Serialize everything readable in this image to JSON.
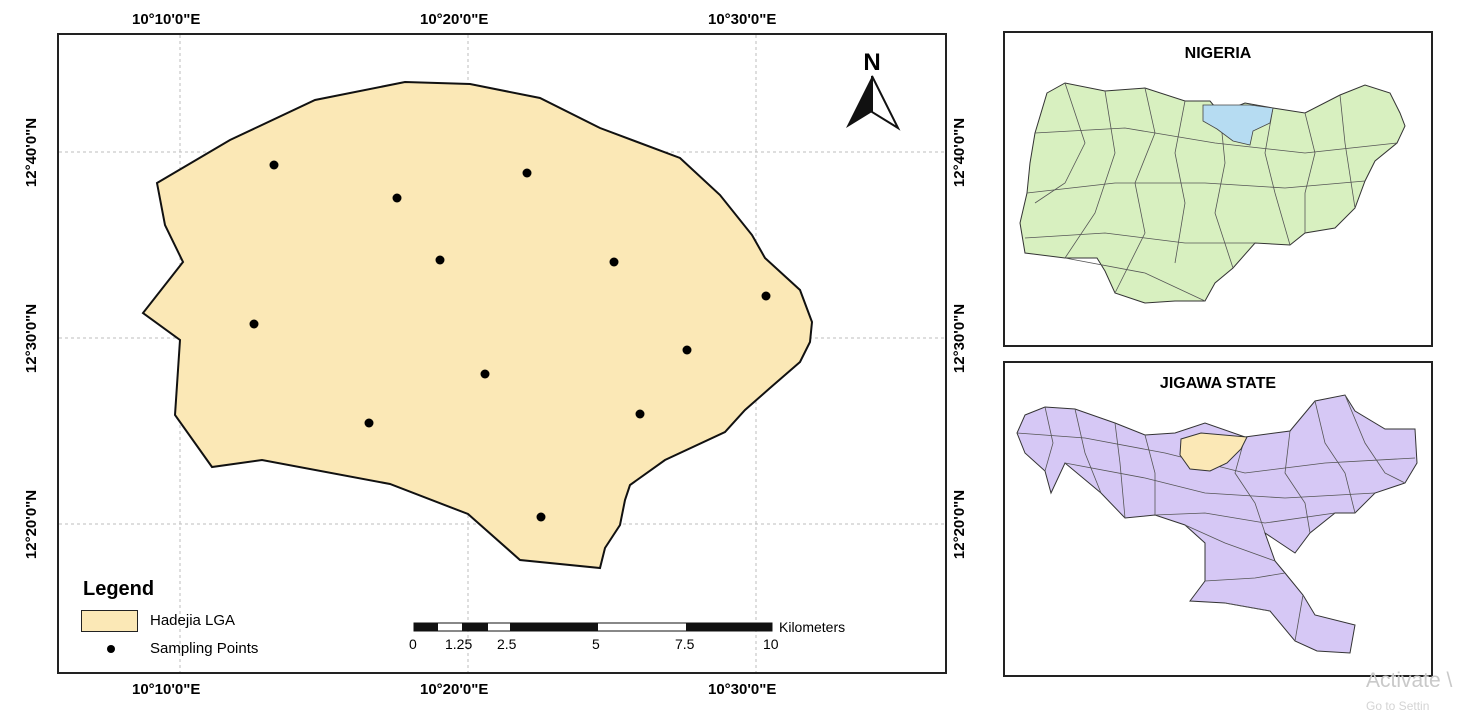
{
  "top_ticks": [
    "10°10'0\"E",
    "10°20'0\"E",
    "10°30'0\"E"
  ],
  "bottom_ticks": [
    "10°10'0\"E",
    "10°20'0\"E",
    "10°30'0\"E"
  ],
  "left_ticks": [
    "12°40'0\"N",
    "12°30'0\"N",
    "12°20'0\"N"
  ],
  "right_ticks": [
    "12°40'0\"N",
    "12°30'0\"N",
    "12°20'0\"N"
  ],
  "north_arrow": {
    "label": "N"
  },
  "legend": {
    "title": "Legend",
    "items": [
      {
        "label": "Hadejia LGA",
        "color": "#fbe8b6"
      },
      {
        "label": "Sampling Points",
        "color": "#000000"
      }
    ]
  },
  "scale_bar": {
    "labels": [
      "0",
      "1.25",
      "2.5",
      "5",
      "7.5",
      "10"
    ],
    "unit": "Kilometers"
  },
  "insets": {
    "nigeria": {
      "title": "NIGERIA",
      "fill": "#d8f0c0",
      "highlight": "#b6dcf2"
    },
    "jigawa": {
      "title": "JIGAWA STATE",
      "fill": "#d6c8f5",
      "highlight": "#fbe8b6"
    }
  },
  "sampling_points_count": 12,
  "colors": {
    "lga_fill": "#fbe8b6",
    "outline": "#111111",
    "grid": "#bdbdbd"
  },
  "watermark": {
    "line1": "Activate \\",
    "line2": "Go to Settin"
  }
}
